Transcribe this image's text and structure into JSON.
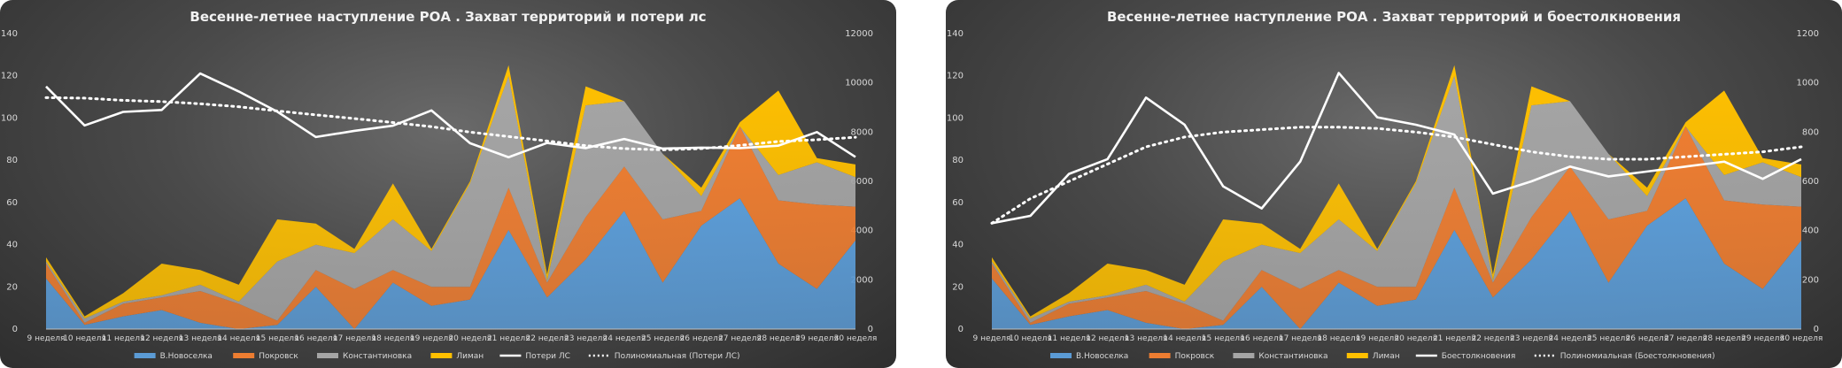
{
  "chart_data": [
    {
      "type": "area",
      "title": "Весенне-летнее наступление РОА . Захват территорий и потери лс",
      "categories": [
        "9 неделя",
        "10 неделя",
        "11 неделя",
        "12 неделя",
        "13 неделя",
        "14 неделя",
        "15 неделя",
        "16 неделя",
        "17 неделя",
        "18 неделя",
        "19 неделя",
        "20 неделя",
        "21 неделя",
        "22 неделя",
        "23 неделя",
        "24 неделя",
        "25 неделя",
        "26 неделя",
        "27 неделя",
        "28 неделя",
        "29 неделя",
        "30 неделя"
      ],
      "ylim": [
        0,
        140
      ],
      "yticks": [
        0,
        20,
        40,
        60,
        80,
        100,
        120,
        140
      ],
      "y2lim": [
        0,
        12000
      ],
      "y2ticks": [
        0,
        2000,
        4000,
        6000,
        8000,
        10000,
        12000
      ],
      "stacked": true,
      "series": [
        {
          "name": "В.Новоселка",
          "color": "#5b9bd5",
          "values": [
            24,
            2,
            6,
            9,
            3,
            0,
            2,
            20,
            0,
            22,
            11,
            14,
            47,
            15,
            33,
            56,
            22,
            49,
            62,
            31,
            19,
            42
          ]
        },
        {
          "name": "Покровск",
          "color": "#ed7d31",
          "values": [
            7,
            1,
            6,
            6,
            15,
            12,
            2,
            8,
            19,
            6,
            9,
            6,
            20,
            7,
            20,
            21,
            30,
            7,
            34,
            30,
            40,
            16
          ]
        },
        {
          "name": "Константиновка",
          "color": "#a5a5a5",
          "values": [
            1,
            2,
            1,
            1,
            3,
            1,
            28,
            12,
            17,
            24,
            17,
            49,
            53,
            1,
            53,
            31,
            31,
            7,
            0,
            12,
            20,
            14
          ]
        },
        {
          "name": "Лиман",
          "color": "#ffc000",
          "values": [
            2,
            1,
            4,
            15,
            7,
            8,
            20,
            10,
            2,
            17,
            1,
            1,
            5,
            3,
            9,
            0,
            0,
            4,
            2,
            40,
            2,
            6
          ]
        }
      ],
      "line": {
        "name": "Потери ЛС",
        "color": "#ffffff",
        "values": [
          9850,
          8270,
          8820,
          8900,
          10380,
          9650,
          8830,
          7800,
          8050,
          8260,
          8880,
          7550,
          6980,
          7560,
          7350,
          7720,
          7330,
          7370,
          7350,
          7450,
          8000,
          6990
        ]
      },
      "trend": {
        "name": "Полиномиальная (Потери ЛС)",
        "values": [
          9400,
          9380,
          9290,
          9240,
          9150,
          9030,
          8860,
          8700,
          8550,
          8390,
          8220,
          8000,
          7820,
          7640,
          7450,
          7330,
          7280,
          7330,
          7460,
          7620,
          7690,
          7790
        ]
      },
      "legend": "bottom"
    },
    {
      "type": "area",
      "title": "Весенне-летнее наступление РОА . Захват территорий и боестолкновения",
      "categories": [
        "9 неделя",
        "10 неделя",
        "11 неделя",
        "12 неделя",
        "13 неделя",
        "14 неделя",
        "15 неделя",
        "16 неделя",
        "17 неделя",
        "18 неделя",
        "19 неделя",
        "20 неделя",
        "21 неделя",
        "22 неделя",
        "23 неделя",
        "24 неделя",
        "25 неделя",
        "26 неделя",
        "27 неделя",
        "28 неделя",
        "29 неделя",
        "30 неделя"
      ],
      "ylim": [
        0,
        140
      ],
      "yticks": [
        0,
        20,
        40,
        60,
        80,
        100,
        120,
        140
      ],
      "y2lim": [
        0,
        1200
      ],
      "y2ticks": [
        0,
        200,
        400,
        600,
        800,
        1000,
        1200
      ],
      "stacked": true,
      "series": [
        {
          "name": "В.Новоселка",
          "color": "#5b9bd5",
          "values": [
            24,
            2,
            6,
            9,
            3,
            0,
            2,
            20,
            0,
            22,
            11,
            14,
            47,
            15,
            33,
            56,
            22,
            49,
            62,
            31,
            19,
            42
          ]
        },
        {
          "name": "Покровск",
          "color": "#ed7d31",
          "values": [
            7,
            1,
            6,
            6,
            15,
            12,
            2,
            8,
            19,
            6,
            9,
            6,
            20,
            7,
            20,
            21,
            30,
            7,
            34,
            30,
            40,
            16
          ]
        },
        {
          "name": "Константиновка",
          "color": "#a5a5a5",
          "values": [
            1,
            2,
            1,
            1,
            3,
            1,
            28,
            12,
            17,
            24,
            17,
            49,
            53,
            1,
            53,
            31,
            31,
            7,
            0,
            12,
            20,
            14
          ]
        },
        {
          "name": "Лиман",
          "color": "#ffc000",
          "values": [
            2,
            1,
            4,
            15,
            7,
            8,
            20,
            10,
            2,
            17,
            1,
            1,
            5,
            3,
            9,
            0,
            0,
            4,
            2,
            40,
            2,
            6
          ]
        }
      ],
      "line": {
        "name": "Боестолкновения",
        "color": "#ffffff",
        "values": [
          430,
          460,
          630,
          690,
          940,
          830,
          580,
          490,
          680,
          1040,
          860,
          830,
          790,
          550,
          600,
          660,
          620,
          640,
          660,
          680,
          610,
          690
        ]
      },
      "trend": {
        "name": "Полиномиальная (Боестолкновения)",
        "values": [
          430,
          530,
          600,
          670,
          740,
          780,
          800,
          810,
          820,
          820,
          815,
          800,
          780,
          750,
          720,
          700,
          690,
          690,
          700,
          710,
          720,
          740
        ]
      },
      "legend": "bottom"
    }
  ]
}
